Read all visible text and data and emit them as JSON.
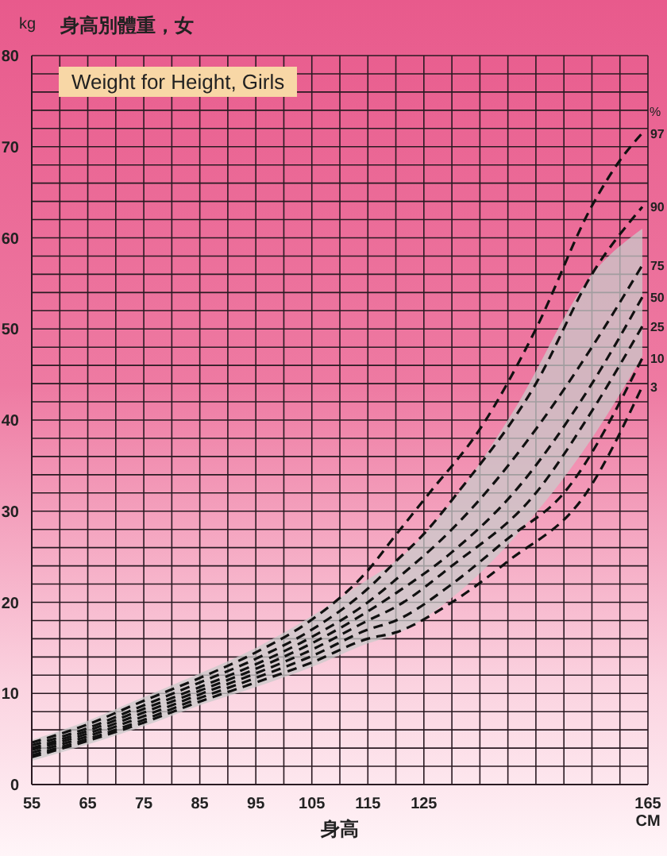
{
  "chart_data": {
    "type": "line",
    "title": "Weight for Height, Girls",
    "subtitle": "身高別體重，女",
    "xlabel": "身高",
    "ylabel": "kg",
    "annotations": [
      "%",
      "CM"
    ],
    "xlim": [
      55,
      165
    ],
    "ylim": [
      0,
      80
    ],
    "xticks": [
      55,
      {
        "value": 60,
        "label": null
      },
      65,
      {
        "value": 70,
        "label": null
      },
      75,
      {
        "value": 80,
        "label": null
      },
      85,
      {
        "value": 90,
        "label": null
      },
      95,
      {
        "value": 100,
        "label": null
      },
      105,
      {
        "value": 110,
        "label": null
      },
      115,
      {
        "value": 120,
        "label": null
      },
      125,
      {
        "value": 130,
        "label": null
      },
      {
        "value": 135,
        "label": null
      },
      {
        "value": 140,
        "label": null
      },
      {
        "value": 145,
        "label": null
      },
      {
        "value": 150,
        "label": null
      },
      {
        "value": 155,
        "label": null
      },
      {
        "value": 160,
        "label": null
      },
      165
    ],
    "yticks": [
      0,
      {
        "value": 2,
        "label": null
      },
      {
        "value": 4,
        "label": null
      },
      {
        "value": 6,
        "label": null
      },
      {
        "value": 8,
        "label": null
      },
      10,
      {
        "value": 12,
        "label": null
      },
      {
        "value": 14,
        "label": null
      },
      {
        "value": 16,
        "label": null
      },
      {
        "value": 18,
        "label": null
      },
      20,
      {
        "value": 22,
        "label": null
      },
      {
        "value": 24,
        "label": null
      },
      {
        "value": 26,
        "label": null
      },
      {
        "value": 28,
        "label": null
      },
      30,
      {
        "value": 32,
        "label": null
      },
      {
        "value": 34,
        "label": null
      },
      {
        "value": 36,
        "label": null
      },
      {
        "value": 38,
        "label": null
      },
      40,
      {
        "value": 42,
        "label": null
      },
      {
        "value": 44,
        "label": null
      },
      {
        "value": 46,
        "label": null
      },
      {
        "value": 48,
        "label": null
      },
      50,
      {
        "value": 52,
        "label": null
      },
      {
        "value": 54,
        "label": null
      },
      {
        "value": 56,
        "label": null
      },
      {
        "value": 58,
        "label": null
      },
      60,
      {
        "value": 62,
        "label": null
      },
      {
        "value": 64,
        "label": null
      },
      {
        "value": 66,
        "label": null
      },
      {
        "value": 68,
        "label": null
      },
      70,
      {
        "value": 72,
        "label": null
      },
      {
        "value": 74,
        "label": null
      },
      {
        "value": 76,
        "label": null
      },
      {
        "value": 78,
        "label": null
      },
      80
    ],
    "grid": true,
    "marker": "none",
    "line_style": "dashed",
    "series": [
      {
        "name": "97",
        "color": "#111111",
        "x": [
          55,
          65,
          75,
          85,
          95,
          105,
          115,
          120,
          126,
          135,
          145,
          155,
          160,
          164
        ],
        "values": [
          4.6,
          6.6,
          9.2,
          11.7,
          14.5,
          18.1,
          23.5,
          27.4,
          32,
          39,
          50,
          63.5,
          68.5,
          71.5
        ]
      },
      {
        "name": "90",
        "color": "#111111",
        "x": [
          55,
          65,
          75,
          85,
          95,
          105,
          115,
          120,
          125,
          131,
          145,
          155,
          164
        ],
        "values": [
          4.3,
          6.2,
          8.7,
          11.2,
          13.8,
          17,
          21.5,
          24.5,
          27.5,
          32,
          44,
          56,
          63.4
        ]
      },
      {
        "name": "75",
        "color": "#111111",
        "x": [
          55,
          65,
          75,
          85,
          95,
          105,
          115,
          120,
          130,
          136,
          145,
          155,
          164
        ],
        "values": [
          4,
          5.9,
          8.3,
          10.7,
          13.2,
          16.2,
          20,
          22.5,
          28,
          32,
          39,
          48,
          57
        ]
      },
      {
        "name": "50",
        "color": "#111111",
        "x": [
          55,
          65,
          75,
          85,
          95,
          105,
          115,
          120,
          130,
          141,
          155,
          164
        ],
        "values": [
          3.8,
          5.6,
          7.9,
          10.3,
          12.7,
          15.5,
          19,
          21,
          25.5,
          32,
          44,
          53.5
        ],
        "lower": [
          2.6,
          4.4,
          6.4,
          8.7,
          10.7,
          12.9,
          15.5,
          16.5,
          20.5,
          27,
          38,
          47
        ],
        "upper": [
          4.9,
          7,
          9.6,
          12.2,
          15,
          18.5,
          22.5,
          24.5,
          31,
          41,
          56,
          61
        ]
      },
      {
        "name": "25",
        "color": "#111111",
        "x": [
          55,
          65,
          75,
          85,
          95,
          105,
          115,
          120,
          130,
          145,
          155,
          164
        ],
        "values": [
          3.5,
          5.3,
          7.5,
          9.9,
          12.2,
          14.8,
          18,
          19.5,
          24,
          32,
          41,
          50.3
        ]
      },
      {
        "name": "10",
        "color": "#111111",
        "x": [
          55,
          65,
          75,
          85,
          95,
          105,
          115,
          120,
          130,
          140,
          150,
          164
        ],
        "values": [
          3.2,
          5,
          7.1,
          9.5,
          11.7,
          14.1,
          17,
          18,
          22,
          27,
          32,
          46.8
        ]
      },
      {
        "name": "3",
        "color": "#111111",
        "x": [
          55,
          65,
          75,
          85,
          95,
          105,
          115,
          120,
          130,
          140,
          154,
          164
        ],
        "values": [
          3,
          4.8,
          6.8,
          9.1,
          11.2,
          13.4,
          16,
          16.7,
          20,
          24.5,
          32,
          43.7
        ]
      }
    ]
  }
}
